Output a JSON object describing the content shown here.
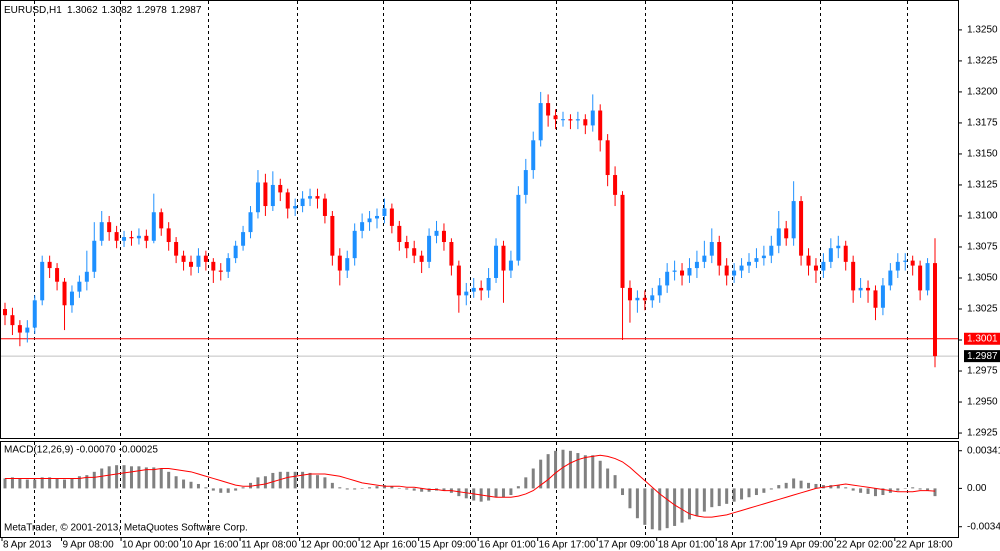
{
  "chart_data": {
    "type": "candlestick",
    "symbol": "EURUSD,H1",
    "header_ohlc": [
      1.3062,
      1.3082,
      1.2978,
      1.2987
    ],
    "categories": [
      "8 Apr 2013",
      null,
      null,
      null,
      null,
      null,
      null,
      null,
      "9 Apr 08:00",
      null,
      null,
      null,
      null,
      null,
      null,
      null,
      "10 Apr 00:00",
      null,
      null,
      null,
      null,
      null,
      null,
      null,
      "10 Apr 16:00",
      null,
      null,
      null,
      null,
      null,
      null,
      null,
      "11 Apr 08:00",
      null,
      null,
      null,
      null,
      null,
      null,
      null,
      "12 Apr 00:00",
      null,
      null,
      null,
      null,
      null,
      null,
      null,
      "12 Apr 16:00",
      null,
      null,
      null,
      null,
      null,
      null,
      null,
      "15 Apr 09:00",
      null,
      null,
      null,
      null,
      null,
      null,
      null,
      "16 Apr 01:00",
      null,
      null,
      null,
      null,
      null,
      null,
      null,
      "16 Apr 17:00",
      null,
      null,
      null,
      null,
      null,
      null,
      null,
      "17 Apr 09:00",
      null,
      null,
      null,
      null,
      null,
      null,
      null,
      "18 Apr 01:00",
      null,
      null,
      null,
      null,
      null,
      null,
      null,
      "18 Apr 17:00",
      null,
      null,
      null,
      null,
      null,
      null,
      null,
      "19 Apr 09:00",
      null,
      null,
      null,
      null,
      null,
      null,
      null,
      "22 Apr 02:00",
      null,
      null,
      null,
      null,
      null,
      null,
      null,
      "22 Apr 18:00",
      null,
      null,
      null,
      null,
      null
    ],
    "open": [
      1.3025,
      1.302,
      1.3012,
      1.3006,
      1.301,
      1.3032,
      1.3063,
      1.3058,
      1.3047,
      1.3028,
      1.3039,
      1.3047,
      1.3055,
      1.308,
      1.3095,
      1.3087,
      1.308,
      1.3083,
      1.3082,
      1.3084,
      1.308,
      1.3103,
      1.309,
      1.3079,
      1.3068,
      1.3063,
      1.3059,
      1.3068,
      1.3063,
      1.3056,
      1.3055,
      1.3066,
      1.3076,
      1.3087,
      1.3103,
      1.3127,
      1.3108,
      1.3125,
      1.3119,
      1.3106,
      1.3108,
      1.3114,
      1.3116,
      1.3114,
      1.31,
      1.3068,
      1.3056,
      1.3066,
      1.3088,
      1.3095,
      1.3098,
      1.31,
      1.3106,
      1.3092,
      1.3079,
      1.3074,
      1.3068,
      1.3063,
      1.3084,
      1.3088,
      1.3079,
      1.306,
      1.3036,
      1.3039,
      1.3042,
      1.304,
      1.305,
      1.3076,
      1.3056,
      1.3064,
      1.3117,
      1.3137,
      1.3161,
      1.3191,
      1.3181,
      1.3178,
      1.3178,
      1.3177,
      1.3178,
      1.3173,
      1.3185,
      1.3161,
      1.3133,
      1.3117,
      1.3042,
      1.3032,
      1.3034,
      1.3032,
      1.3036,
      1.3044,
      1.3055,
      1.3056,
      1.3052,
      1.3058,
      1.3063,
      1.3068,
      1.3079,
      1.306,
      1.3052,
      1.3056,
      1.306,
      1.3063,
      1.3066,
      1.3068,
      1.3076,
      1.309,
      1.3082,
      1.3112,
      1.3068,
      1.306,
      1.3056,
      1.3063,
      1.3074,
      1.3076,
      1.3063,
      1.304,
      1.3042,
      1.304,
      1.3026,
      1.3044,
      1.3056,
      1.3063,
      1.3064,
      1.306,
      1.304,
      1.3062
    ],
    "high": [
      1.303,
      1.3026,
      1.3016,
      1.3016,
      1.3036,
      1.3068,
      1.3068,
      1.3062,
      1.305,
      1.3044,
      1.3052,
      1.3072,
      1.3095,
      1.3104,
      1.31,
      1.3092,
      1.3088,
      1.3088,
      1.309,
      1.3089,
      1.3118,
      1.3106,
      1.3095,
      1.3083,
      1.3072,
      1.3068,
      1.3074,
      1.3072,
      1.3066,
      1.3062,
      1.307,
      1.308,
      1.3092,
      1.3108,
      1.3137,
      1.3134,
      1.3136,
      1.313,
      1.3122,
      1.3114,
      1.312,
      1.3122,
      1.3122,
      1.3118,
      1.3104,
      1.3074,
      1.3072,
      1.3094,
      1.3102,
      1.3104,
      1.3106,
      1.3114,
      1.311,
      1.3096,
      1.3084,
      1.308,
      1.3072,
      1.309,
      1.3096,
      1.3094,
      1.3082,
      1.3064,
      1.3046,
      1.305,
      1.3048,
      1.3058,
      1.3082,
      1.308,
      1.3072,
      1.3124,
      1.3146,
      1.3168,
      1.32,
      1.3198,
      1.3186,
      1.3184,
      1.3182,
      1.3184,
      1.3182,
      1.3198,
      1.319,
      1.3166,
      1.314,
      1.312,
      1.3048,
      1.304,
      1.304,
      1.3042,
      1.305,
      1.3062,
      1.3064,
      1.3062,
      1.3066,
      1.3072,
      1.308,
      1.309,
      1.3084,
      1.3066,
      1.3062,
      1.3066,
      1.307,
      1.3074,
      1.3076,
      1.3084,
      1.3104,
      1.3096,
      1.3128,
      1.3116,
      1.3074,
      1.3066,
      1.307,
      1.3082,
      1.3084,
      1.308,
      1.3068,
      1.305,
      1.3048,
      1.3044,
      1.305,
      1.3062,
      1.307,
      1.307,
      1.3068,
      1.3064,
      1.3066,
      1.3082
    ],
    "low": [
      1.3012,
      1.3004,
      1.2995,
      1.2998,
      1.3005,
      1.3028,
      1.305,
      1.304,
      1.3008,
      1.3022,
      1.3034,
      1.304,
      1.305,
      1.3076,
      1.308,
      1.3074,
      1.3075,
      1.3076,
      1.3077,
      1.3074,
      1.3078,
      1.3084,
      1.3072,
      1.3062,
      1.3056,
      1.3052,
      1.3054,
      1.3056,
      1.3046,
      1.3048,
      1.305,
      1.3062,
      1.3072,
      1.3082,
      1.3098,
      1.31,
      1.3104,
      1.3112,
      1.3098,
      1.31,
      1.3103,
      1.3108,
      1.3106,
      1.3094,
      1.306,
      1.3044,
      1.305,
      1.306,
      1.3082,
      1.3088,
      1.309,
      1.3094,
      1.3086,
      1.3072,
      1.3066,
      1.3062,
      1.3054,
      1.3058,
      1.3078,
      1.3072,
      1.3052,
      1.3022,
      1.3028,
      1.3034,
      1.3032,
      1.3034,
      1.3046,
      1.303,
      1.305,
      1.306,
      1.311,
      1.313,
      1.3156,
      1.3172,
      1.317,
      1.3172,
      1.317,
      1.317,
      1.3166,
      1.3168,
      1.3152,
      1.3124,
      1.3108,
      1.3,
      1.3014,
      1.3022,
      1.3024,
      1.3026,
      1.303,
      1.3038,
      1.3048,
      1.3044,
      1.3046,
      1.305,
      1.3058,
      1.3062,
      1.3052,
      1.3044,
      1.3046,
      1.305,
      1.3054,
      1.3058,
      1.306,
      1.3062,
      1.307,
      1.3076,
      1.3076,
      1.306,
      1.3052,
      1.3046,
      1.305,
      1.3058,
      1.3066,
      1.3056,
      1.303,
      1.3034,
      1.303,
      1.3016,
      1.302,
      1.304,
      1.305,
      1.3056,
      1.3052,
      1.3032,
      1.3036,
      1.2978
    ],
    "close": [
      1.302,
      1.3012,
      1.3006,
      1.301,
      1.3032,
      1.3063,
      1.3058,
      1.3047,
      1.3028,
      1.3039,
      1.3047,
      1.3055,
      1.308,
      1.3095,
      1.3087,
      1.308,
      1.3083,
      1.3082,
      1.3084,
      1.308,
      1.3103,
      1.309,
      1.3079,
      1.3068,
      1.3063,
      1.3059,
      1.3068,
      1.3063,
      1.3056,
      1.3055,
      1.3066,
      1.3076,
      1.3087,
      1.3103,
      1.3127,
      1.3108,
      1.3125,
      1.3119,
      1.3106,
      1.3108,
      1.3114,
      1.3116,
      1.3114,
      1.31,
      1.3068,
      1.3056,
      1.3066,
      1.3088,
      1.3095,
      1.3098,
      1.31,
      1.3106,
      1.3092,
      1.3079,
      1.3074,
      1.3068,
      1.3063,
      1.3084,
      1.3088,
      1.3079,
      1.306,
      1.3036,
      1.3039,
      1.3042,
      1.304,
      1.305,
      1.3076,
      1.3056,
      1.3064,
      1.3117,
      1.3137,
      1.3161,
      1.3191,
      1.3181,
      1.3178,
      1.3178,
      1.3177,
      1.3178,
      1.3173,
      1.3185,
      1.3161,
      1.3133,
      1.3117,
      1.3042,
      1.3032,
      1.3034,
      1.3032,
      1.3036,
      1.3044,
      1.3055,
      1.3056,
      1.3052,
      1.3058,
      1.3063,
      1.3068,
      1.3079,
      1.306,
      1.3052,
      1.3056,
      1.306,
      1.3063,
      1.3066,
      1.3068,
      1.3076,
      1.309,
      1.3082,
      1.3112,
      1.3068,
      1.306,
      1.3056,
      1.3063,
      1.3074,
      1.3076,
      1.3063,
      1.304,
      1.3042,
      1.304,
      1.3026,
      1.3044,
      1.3056,
      1.3063,
      1.3064,
      1.306,
      1.304,
      1.3062,
      1.2987
    ],
    "up_color": "#1e90ff",
    "down_color": "#ff0000",
    "ylim": [
      1.2921,
      1.32733
    ],
    "yticks": [
      {
        "value": 1.325,
        "label": "1.3250"
      },
      1.3225,
      {
        "value": 1.32,
        "label": "1.3200"
      },
      1.3175,
      {
        "value": 1.315,
        "label": "1.3150"
      },
      1.3125,
      {
        "value": 1.31,
        "label": "1.3100"
      },
      1.3075,
      {
        "value": 1.305,
        "label": "1.3050"
      },
      1.3025,
      {
        "value": 1.3,
        "label": "1.3000"
      },
      1.2975,
      {
        "value": 1.295,
        "label": "1.2950"
      },
      1.2925
    ],
    "level_line": {
      "value": 1.3001,
      "color": "#ff0000"
    },
    "bid_line": {
      "value": 1.2987,
      "color": "#c0c0c0"
    },
    "indicator": {
      "type": "macd",
      "title": "MACD(12,26,9) -0.00070 -0.00025",
      "histogram": {
        "color": "#808080",
        "values": [
          0.0009,
          0.001,
          0.0009,
          0.0008,
          0.0008,
          0.001,
          0.001,
          0.0009,
          0.0008,
          0.0009,
          0.0011,
          0.0012,
          0.0015,
          0.0018,
          0.002,
          0.0021,
          0.0021,
          0.002,
          0.002,
          0.0019,
          0.0019,
          0.0018,
          0.0015,
          0.0011,
          0.0008,
          0.0006,
          0.0004,
          0.0001,
          -0.0002,
          -0.0004,
          -0.0004,
          -0.0002,
          0.0001,
          0.0005,
          0.001,
          0.0011,
          0.0014,
          0.0015,
          0.0015,
          0.0015,
          0.0015,
          0.0014,
          0.0012,
          0.001,
          0.0005,
          0.0001,
          -0.0001,
          -0.0001,
          0,
          0.0001,
          0.0002,
          0.0003,
          0.0002,
          0,
          -0.0001,
          -0.0002,
          -0.0003,
          -0.0003,
          -0.0002,
          -0.0002,
          -0.0004,
          -0.0007,
          -0.0009,
          -0.0011,
          -0.0012,
          -0.0011,
          -0.0008,
          -0.0008,
          -0.0006,
          0.0002,
          0.001,
          0.0018,
          0.0026,
          0.0031,
          0.0034,
          0.0035,
          0.0034,
          0.0032,
          0.003,
          0.003,
          0.0025,
          0.0018,
          0.0012,
          -0.0006,
          -0.0018,
          -0.0027,
          -0.0033,
          -0.0037,
          -0.0038,
          -0.0036,
          -0.0034,
          -0.0031,
          -0.0028,
          -0.0025,
          -0.0021,
          -0.0017,
          -0.0016,
          -0.0014,
          -0.0012,
          -0.001,
          -0.0008,
          -0.0006,
          -0.0004,
          -0.0001,
          0.0003,
          0.0005,
          0.0009,
          0.0007,
          0.0005,
          0.0004,
          0.0003,
          0.0003,
          0.0003,
          0.0001,
          -0.0002,
          -0.0004,
          -0.0005,
          -0.0007,
          -0.0006,
          -0.0004,
          -0.0002,
          0,
          0.0001,
          -0.0001,
          -0.0002,
          -0.0007
        ]
      },
      "signal": {
        "color": "#ff0000",
        "values": [
          0.0009,
          0.0009,
          0.0009,
          0.0009,
          0.0009,
          0.0009,
          0.0009,
          0.0009,
          0.0009,
          0.0009,
          0.0009,
          0.001,
          0.001,
          0.0011,
          0.0012,
          0.0013,
          0.0014,
          0.0015,
          0.0016,
          0.0017,
          0.0017,
          0.0018,
          0.0018,
          0.0017,
          0.0016,
          0.0015,
          0.0013,
          0.0011,
          0.0009,
          0.0007,
          0.0005,
          0.0003,
          0.0002,
          0.0002,
          0.0003,
          0.0004,
          0.0006,
          0.0008,
          0.001,
          0.0011,
          0.0012,
          0.0013,
          0.0013,
          0.0013,
          0.0012,
          0.0011,
          0.0009,
          0.0007,
          0.0005,
          0.0004,
          0.0003,
          0.0002,
          0.0002,
          0.0002,
          0.0001,
          0.0001,
          0,
          -0.0001,
          -0.0001,
          -0.0002,
          -0.0002,
          -0.0003,
          -0.0004,
          -0.0005,
          -0.0006,
          -0.0007,
          -0.0008,
          -0.0008,
          -0.0008,
          -0.0007,
          -0.0005,
          -0.0002,
          0.0003,
          0.0008,
          0.0014,
          0.0019,
          0.0023,
          0.0026,
          0.0028,
          0.0029,
          0.003,
          0.0029,
          0.0027,
          0.0024,
          0.0019,
          0.0013,
          0.0007,
          0.0001,
          -0.0005,
          -0.001,
          -0.0015,
          -0.0019,
          -0.0023,
          -0.0025,
          -0.0026,
          -0.0026,
          -0.0025,
          -0.0024,
          -0.0022,
          -0.002,
          -0.0018,
          -0.0016,
          -0.0014,
          -0.0012,
          -0.001,
          -0.0008,
          -0.0006,
          -0.0004,
          -0.0002,
          0,
          0.0001,
          0.0002,
          0.0003,
          0.0004,
          0.0003,
          0.0002,
          0.0001,
          0,
          -0.0001,
          -0.0002,
          -0.0003,
          -0.0003,
          -0.0003,
          -0.0002,
          -0.0002,
          -0.00025
        ]
      },
      "ylim": [
        -0.0044,
        0.0042
      ],
      "yticks": [
        0.00341,
        {
          "value": 0,
          "label": "0.00"
        },
        -0.00347
      ]
    },
    "footer": "MetaTrader, © 2001-2013, MetaQuotes Software Corp."
  }
}
